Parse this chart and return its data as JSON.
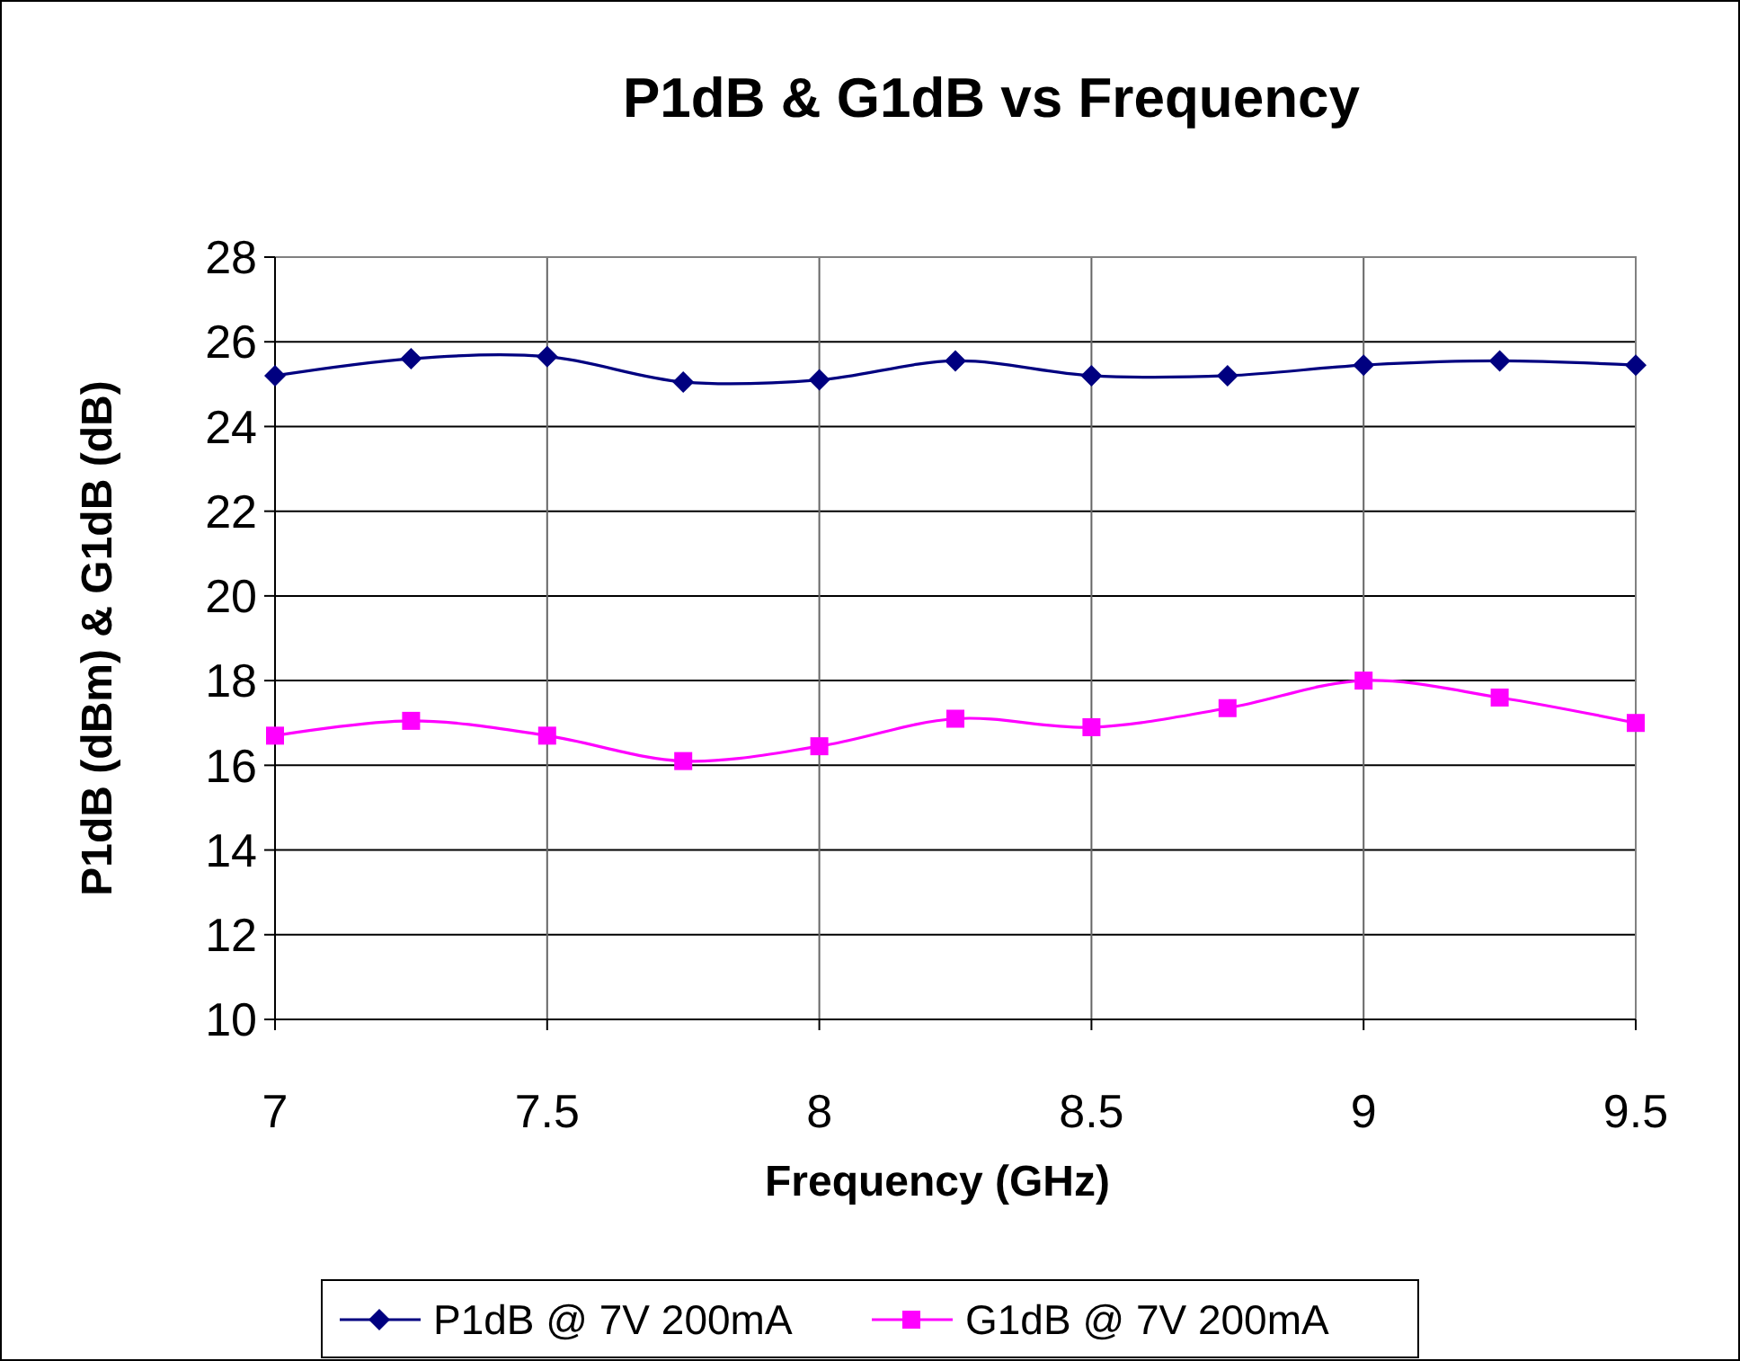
{
  "chart_data": {
    "type": "line",
    "title": "P1dB & G1dB vs Frequency",
    "xlabel": "Frequency (GHz)",
    "ylabel": "P1dB (dBm) & G1dB (dB)",
    "x": [
      7,
      7.25,
      7.5,
      7.75,
      8,
      8.25,
      8.5,
      8.75,
      9,
      9.25,
      9.5
    ],
    "series": [
      {
        "name": "P1dB @ 7V 200mA",
        "color": "#000080",
        "marker": "diamond",
        "values": [
          25.2,
          25.6,
          25.65,
          25.05,
          25.1,
          25.55,
          25.2,
          25.2,
          25.45,
          25.55,
          25.45
        ]
      },
      {
        "name": "G1dB @ 7V 200mA",
        "color": "#ff00ff",
        "marker": "square",
        "values": [
          16.7,
          17.05,
          16.7,
          16.1,
          16.45,
          17.1,
          16.9,
          17.35,
          18,
          17.6,
          17
        ]
      }
    ],
    "xlim": [
      7,
      9.5
    ],
    "xticks": [
      7,
      7.5,
      8,
      8.5,
      9,
      9.5
    ],
    "ylim": [
      10,
      28
    ],
    "yticks": [
      10,
      12,
      14,
      16,
      18,
      20,
      22,
      24,
      26,
      28
    ],
    "grid": true,
    "legend": "bottom",
    "line_style": "solid"
  }
}
